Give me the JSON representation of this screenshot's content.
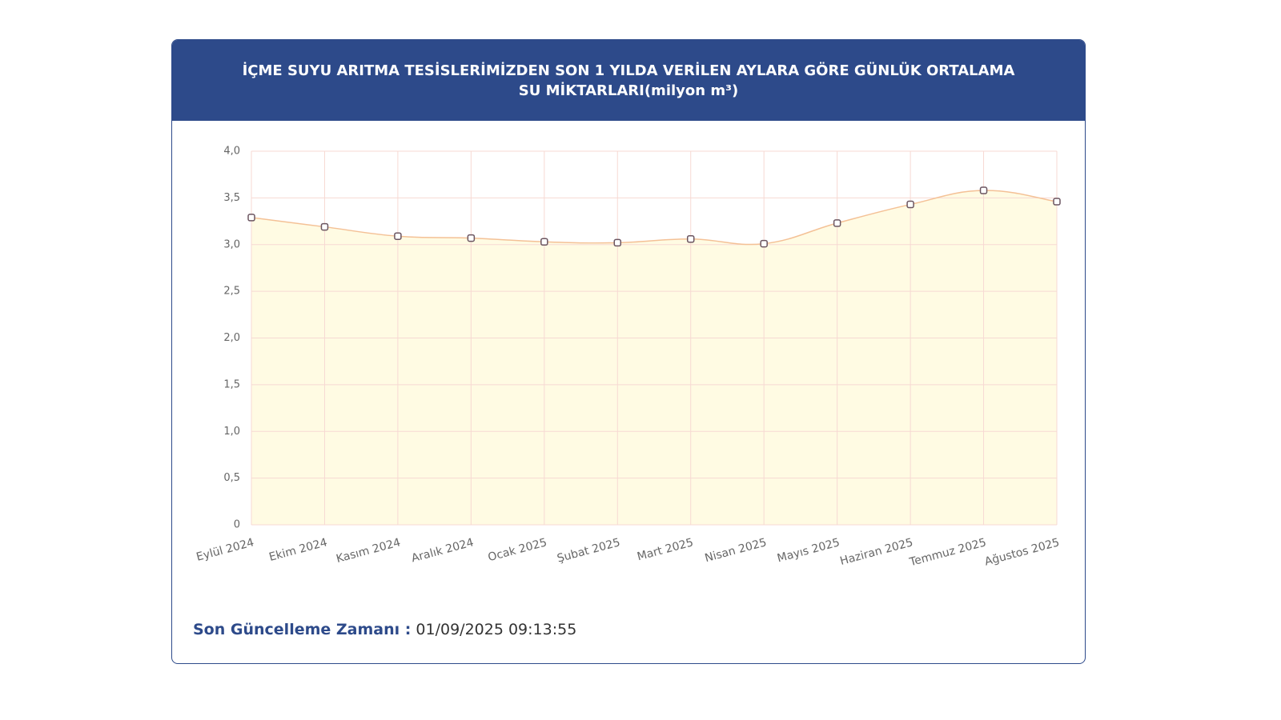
{
  "chart_data": {
    "type": "line",
    "title": "İÇME SUYU ARITMA TESİSLERİMİZDEN SON 1 YILDA VERİLEN AYLARA GÖRE GÜNLÜK ORTALAMA SU MİKTARLARI(milyon m³)",
    "categories": [
      "Eylül 2024",
      "Ekim 2024",
      "Kasım 2024",
      "Aralık 2024",
      "Ocak 2025",
      "Şubat 2025",
      "Mart 2025",
      "Nisan 2025",
      "Mayıs 2025",
      "Haziran 2025",
      "Temmuz 2025",
      "Ağustos 2025"
    ],
    "values": [
      3.29,
      3.19,
      3.09,
      3.07,
      3.03,
      3.02,
      3.06,
      3.01,
      3.23,
      3.43,
      3.58,
      3.46
    ],
    "color": "#f4c196",
    "fill": "#fffbe3",
    "ylim": [
      0,
      4
    ],
    "yticks": [
      0,
      {
        "value": 0.5,
        "label": "0,5"
      },
      {
        "value": 1,
        "label": "1,0"
      },
      {
        "value": 1.5,
        "label": "1,5"
      },
      {
        "value": 2,
        "label": "2,0"
      },
      {
        "value": 2.5,
        "label": "2,5"
      },
      {
        "value": 3,
        "label": "3,0"
      },
      {
        "value": 3.5,
        "label": "3,5"
      },
      {
        "value": 4,
        "label": "4,0"
      }
    ],
    "grid": true
  },
  "footer": {
    "label": "Son Güncelleme Zamanı :",
    "value": "01/09/2025 09:13:55"
  }
}
